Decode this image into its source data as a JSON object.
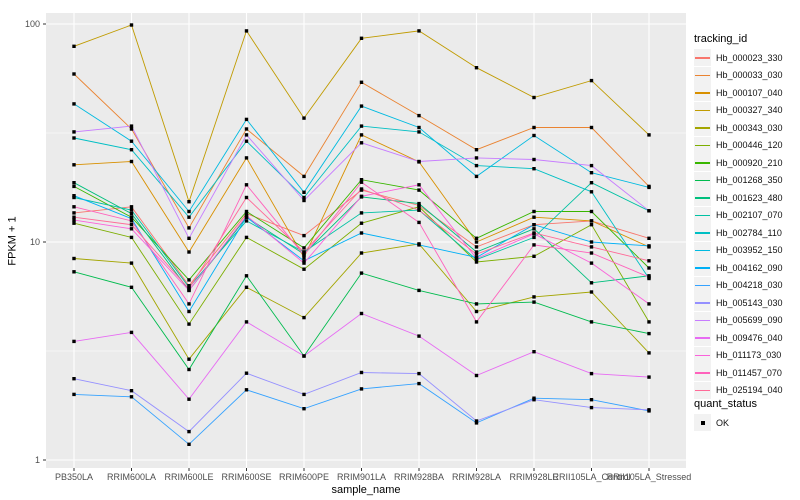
{
  "axes": {
    "x_title": "sample_name",
    "y_title": "FPKM + 1",
    "y_tick_labels": [
      "1",
      "10",
      "100"
    ]
  },
  "legend": {
    "color_title": "tracking_id",
    "shape_title": "quant_status",
    "shape_entry_label": "OK",
    "key_fill": "#f2f2f2",
    "point_color": "#000000"
  },
  "panel": {
    "background": "#ebebeb",
    "grid_color": "#ffffff",
    "tick_color": "#333333",
    "axis_text_color": "#4d4d4d"
  },
  "chart_data": {
    "type": "line",
    "title": "",
    "xlabel": "sample_name",
    "ylabel": "FPKM + 1",
    "y_scale": "log10",
    "y_ticks": [
      1,
      10,
      100
    ],
    "ylim": [
      0.92,
      112
    ],
    "grid": true,
    "legend_position": "right",
    "point_shape": "filled-square",
    "point_status": "OK",
    "categories": [
      "PB350LA",
      "RRIM600LA",
      "RRIM600LE",
      "RRIM600SE",
      "RRIM600PE",
      "RRIM901LA",
      "RRIM928BA",
      "RRIM928LA",
      "RRIM928LE",
      "RRII105LA_Control",
      "RRII105LA_Stressed"
    ],
    "series": [
      {
        "name": "Hb_000023_330",
        "color": "#F8766D",
        "values": [
          13.6,
          14.5,
          6.3,
          13.5,
          10.7,
          17.3,
          14.7,
          9.5,
          12.0,
          12.5,
          10.4
        ]
      },
      {
        "name": "Hb_000033_030",
        "color": "#EA8331",
        "values": [
          59,
          33,
          11.6,
          33,
          20,
          54,
          38,
          26.5,
          33.5,
          33.5,
          18
        ]
      },
      {
        "name": "Hb_000107_040",
        "color": "#D89000",
        "values": [
          22.6,
          23.4,
          9.0,
          24.3,
          8.5,
          31,
          23.3,
          10.0,
          13.0,
          12.5,
          9.5
        ]
      },
      {
        "name": "Hb_000327_340",
        "color": "#C09B00",
        "values": [
          79,
          99,
          15.3,
          93,
          37,
          86,
          93,
          63,
          46,
          55,
          31
        ]
      },
      {
        "name": "Hb_000343_030",
        "color": "#A3A500",
        "values": [
          8.4,
          8.0,
          2.9,
          6.2,
          4.5,
          8.9,
          9.8,
          4.8,
          5.6,
          5.9,
          3.1
        ]
      },
      {
        "name": "Hb_000446_120",
        "color": "#7CAE00",
        "values": [
          12.2,
          10.5,
          4.2,
          10.5,
          7.5,
          12.2,
          14.5,
          8.1,
          8.6,
          12.0,
          4.3
        ]
      },
      {
        "name": "Hb_000920_210",
        "color": "#39B600",
        "values": [
          18.0,
          13.0,
          6.7,
          13.8,
          9.4,
          19.3,
          17.3,
          10.4,
          13.8,
          13.8,
          7.6
        ]
      },
      {
        "name": "Hb_001268_350",
        "color": "#00BB4E",
        "values": [
          7.3,
          6.2,
          2.6,
          7.0,
          3.0,
          7.2,
          6.0,
          5.2,
          5.3,
          4.3,
          3.8
        ]
      },
      {
        "name": "Hb_001623_480",
        "color": "#00BF7D",
        "values": [
          18.7,
          13.5,
          6.0,
          13.0,
          8.8,
          16.1,
          15.0,
          9.0,
          11.5,
          6.5,
          7.0
        ]
      },
      {
        "name": "Hb_002107_070",
        "color": "#00C1A3",
        "values": [
          16.0,
          14.0,
          6.2,
          12.5,
          9.0,
          13.6,
          14.0,
          8.3,
          10.5,
          18.7,
          13.9
        ]
      },
      {
        "name": "Hb_002784_110",
        "color": "#00BFC4",
        "values": [
          30,
          26.5,
          13.0,
          29,
          16.0,
          34,
          32,
          22.4,
          21.7,
          17.0,
          6.8
        ]
      },
      {
        "name": "Hb_003952_150",
        "color": "#00BAE0",
        "values": [
          43,
          29,
          13.8,
          36.5,
          16.9,
          42,
          33.5,
          20,
          30.8,
          20.8,
          17.8
        ]
      },
      {
        "name": "Hb_004162_090",
        "color": "#00B0F6",
        "values": [
          16.3,
          12.8,
          4.8,
          13.0,
          8.2,
          11.0,
          9.7,
          8.5,
          12.0,
          10.0,
          9.6
        ]
      },
      {
        "name": "Hb_004218_030",
        "color": "#35A2FF",
        "values": [
          2.0,
          1.95,
          1.18,
          2.1,
          1.72,
          2.12,
          2.24,
          1.48,
          1.92,
          1.89,
          1.68
        ]
      },
      {
        "name": "Hb_005143_030",
        "color": "#9590FF",
        "values": [
          2.36,
          2.08,
          1.35,
          2.5,
          2.0,
          2.52,
          2.49,
          1.51,
          1.89,
          1.74,
          1.7
        ]
      },
      {
        "name": "Hb_005699_090",
        "color": "#C77CFF",
        "values": [
          32,
          34,
          10.4,
          31,
          15.5,
          28.5,
          23.4,
          24.3,
          23.9,
          22.4,
          13.9
        ]
      },
      {
        "name": "Hb_009476_040",
        "color": "#E76BF3",
        "values": [
          3.5,
          3.85,
          1.9,
          4.3,
          3.0,
          4.7,
          3.7,
          2.44,
          3.14,
          2.49,
          2.4
        ]
      },
      {
        "name": "Hb_011173_030",
        "color": "#FA62DB",
        "values": [
          12.6,
          11.5,
          6.0,
          13.2,
          8.0,
          16.2,
          18.3,
          8.4,
          10.9,
          8.0,
          5.2
        ]
      },
      {
        "name": "Hb_011457_070",
        "color": "#FF62BC",
        "values": [
          14.5,
          12.5,
          5.2,
          18.3,
          8.7,
          18.8,
          12.3,
          4.3,
          9.7,
          8.9,
          6.9
        ]
      },
      {
        "name": "Hb_025194_040",
        "color": "#FF6A98",
        "values": [
          13.0,
          12.0,
          6.1,
          16.0,
          9.0,
          17.5,
          14.0,
          8.8,
          11.0,
          9.5,
          8.2
        ]
      }
    ]
  }
}
